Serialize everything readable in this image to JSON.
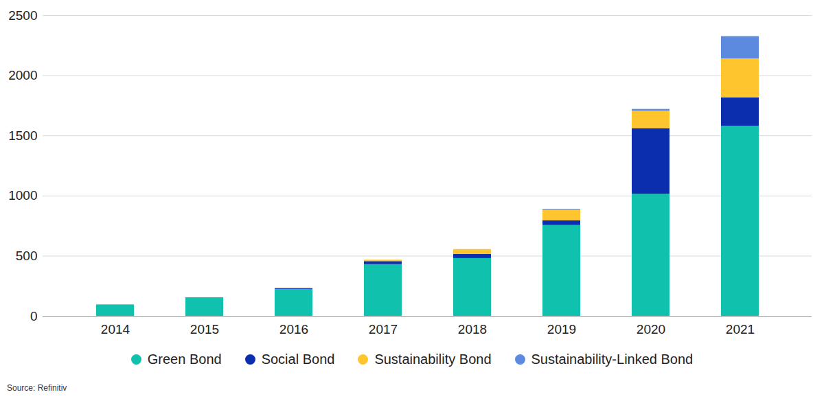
{
  "chart_data": {
    "type": "bar",
    "stacked": true,
    "grid": true,
    "legend": "bottom",
    "caption": "Source: Refinitiv",
    "categories": [
      "2014",
      "2015",
      "2016",
      "2017",
      "2018",
      "2019",
      "2020",
      "2021"
    ],
    "series": [
      {
        "name": "Green Bond",
        "color": "#10c2ad",
        "values": [
          95,
          150,
          222,
          430,
          480,
          755,
          1015,
          1580
        ]
      },
      {
        "name": "Social Bond",
        "color": "#0a2eae",
        "values": [
          0,
          3,
          8,
          25,
          35,
          40,
          545,
          235
        ]
      },
      {
        "name": "Sustainability Bond",
        "color": "#fec52e",
        "values": [
          0,
          0,
          5,
          12,
          40,
          85,
          145,
          325
        ]
      },
      {
        "name": "Sustainability-Linked Bond",
        "color": "#5b8ade",
        "values": [
          0,
          0,
          0,
          0,
          0,
          8,
          15,
          185
        ]
      }
    ],
    "ylim": [
      0,
      2500
    ],
    "yticks": [
      0,
      500,
      1000,
      1500,
      2000,
      2500
    ]
  }
}
